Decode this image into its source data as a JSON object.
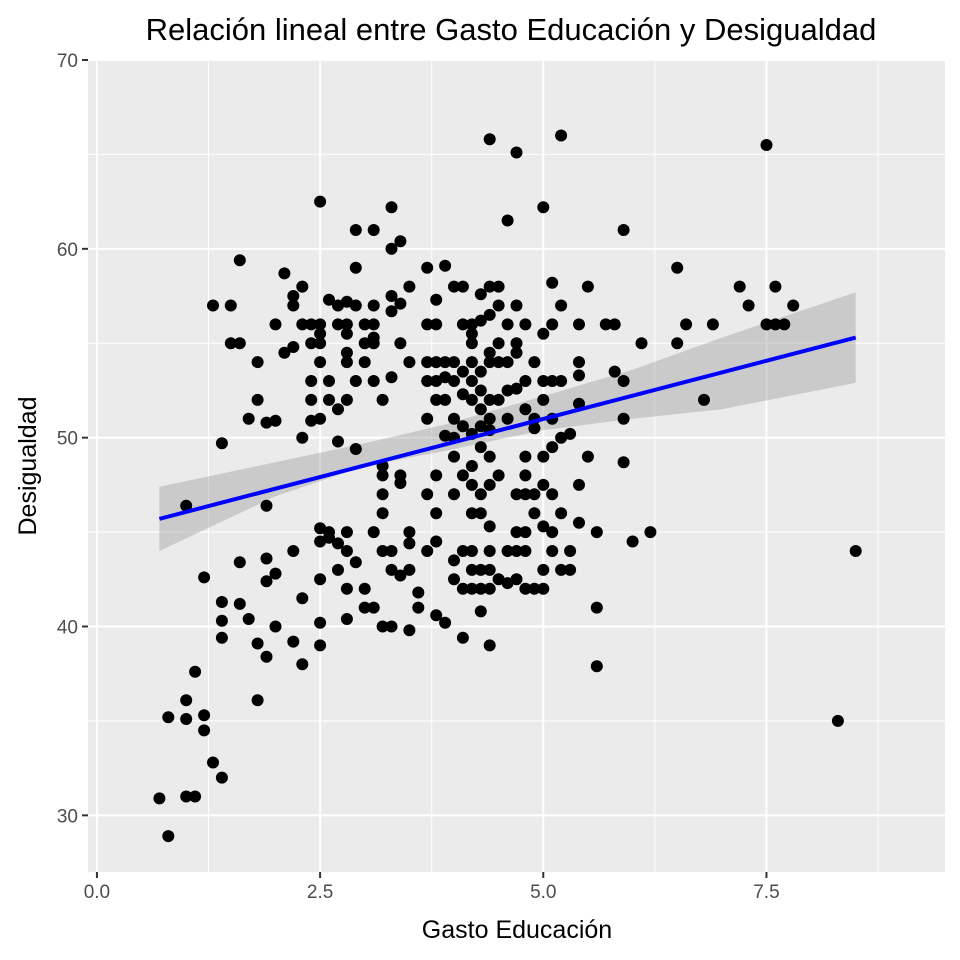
{
  "chart_data": {
    "type": "scatter",
    "title": "Relación lineal entre Gasto Educación y Desigualdad",
    "xlabel": "Gasto Educación",
    "ylabel": "Desigualdad",
    "xlim": [
      -0.1,
      9.5
    ],
    "ylim": [
      27,
      70
    ],
    "x_ticks": [
      0.0,
      2.5,
      5.0,
      7.5
    ],
    "x_tick_labels": [
      "0.0",
      "2.5",
      "5.0",
      "7.5"
    ],
    "y_ticks": [
      30,
      40,
      50,
      60,
      70
    ],
    "y_tick_labels": [
      "30",
      "40",
      "50",
      "60",
      "70"
    ],
    "grid": true,
    "colors": {
      "panel": "#ebebeb",
      "grid": "#ffffff",
      "points": "#000000",
      "fit_line": "#0000ff",
      "ci_band": "#999999"
    },
    "fit_line": {
      "method": "lm",
      "start": [
        0.7,
        45.7
      ],
      "end": [
        8.5,
        55.3
      ],
      "ci_band": [
        {
          "x": 0.7,
          "lower": 44.0,
          "upper": 47.4
        },
        {
          "x": 2.0,
          "lower": 46.9,
          "upper": 48.7
        },
        {
          "x": 3.0,
          "lower": 48.5,
          "upper": 49.7
        },
        {
          "x": 3.9,
          "lower": 49.3,
          "upper": 50.7
        },
        {
          "x": 5.0,
          "lower": 50.4,
          "upper": 52.2
        },
        {
          "x": 6.0,
          "lower": 51.0,
          "upper": 53.6
        },
        {
          "x": 7.0,
          "lower": 51.5,
          "upper": 55.3
        },
        {
          "x": 8.5,
          "lower": 52.9,
          "upper": 57.7
        }
      ]
    },
    "points": [
      [
        0.7,
        30.9
      ],
      [
        0.8,
        28.9
      ],
      [
        0.8,
        35.2
      ],
      [
        1.0,
        36.1
      ],
      [
        1.0,
        35.1
      ],
      [
        1.0,
        31.0
      ],
      [
        1.1,
        31.0
      ],
      [
        1.1,
        37.6
      ],
      [
        1.2,
        35.3
      ],
      [
        1.2,
        34.5
      ],
      [
        1.3,
        32.8
      ],
      [
        1.4,
        32.0
      ],
      [
        1.2,
        42.6
      ],
      [
        1.4,
        41.3
      ],
      [
        1.4,
        40.3
      ],
      [
        1.4,
        39.4
      ],
      [
        1.6,
        41.2
      ],
      [
        1.7,
        40.4
      ],
      [
        1.8,
        39.1
      ],
      [
        1.8,
        36.1
      ],
      [
        1.9,
        38.4
      ],
      [
        1.9,
        42.4
      ],
      [
        1.9,
        43.6
      ],
      [
        2.0,
        42.8
      ],
      [
        2.0,
        40.0
      ],
      [
        2.2,
        39.2
      ],
      [
        2.3,
        38.0
      ],
      [
        2.3,
        41.5
      ],
      [
        2.2,
        44.0
      ],
      [
        1.6,
        43.4
      ],
      [
        1.0,
        46.4
      ],
      [
        1.9,
        46.4
      ],
      [
        1.4,
        49.7
      ],
      [
        1.7,
        51.0
      ],
      [
        1.9,
        50.8
      ],
      [
        2.0,
        50.9
      ],
      [
        1.8,
        52.0
      ],
      [
        1.8,
        54.0
      ],
      [
        1.6,
        55.0
      ],
      [
        1.5,
        55.0
      ],
      [
        1.3,
        57.0
      ],
      [
        1.5,
        57.0
      ],
      [
        1.6,
        59.4
      ],
      [
        2.0,
        56.0
      ],
      [
        2.1,
        54.5
      ],
      [
        2.1,
        58.7
      ],
      [
        2.2,
        57.5
      ],
      [
        2.2,
        57.0
      ],
      [
        2.2,
        54.8
      ],
      [
        2.3,
        56.0
      ],
      [
        2.3,
        58.0
      ],
      [
        2.4,
        56.0
      ],
      [
        2.4,
        55.0
      ],
      [
        2.4,
        53.0
      ],
      [
        2.4,
        52.0
      ],
      [
        2.4,
        50.9
      ],
      [
        2.3,
        50.0
      ],
      [
        2.5,
        62.5
      ],
      [
        2.5,
        56.0
      ],
      [
        2.5,
        55.5
      ],
      [
        2.5,
        55.0
      ],
      [
        2.5,
        54.0
      ],
      [
        2.5,
        51.0
      ],
      [
        2.5,
        45.2
      ],
      [
        2.5,
        44.5
      ],
      [
        2.5,
        42.5
      ],
      [
        2.5,
        40.2
      ],
      [
        2.5,
        39.0
      ],
      [
        2.6,
        57.3
      ],
      [
        2.6,
        53.0
      ],
      [
        2.6,
        52.0
      ],
      [
        2.6,
        45.0
      ],
      [
        2.6,
        44.7
      ],
      [
        2.7,
        57.0
      ],
      [
        2.7,
        56.0
      ],
      [
        2.7,
        51.5
      ],
      [
        2.7,
        49.8
      ],
      [
        2.7,
        44.4
      ],
      [
        2.7,
        43.0
      ],
      [
        2.8,
        57.2
      ],
      [
        2.8,
        56.0
      ],
      [
        2.8,
        55.5
      ],
      [
        2.8,
        54.5
      ],
      [
        2.8,
        54.0
      ],
      [
        2.8,
        52.0
      ],
      [
        2.8,
        45.0
      ],
      [
        2.8,
        44.0
      ],
      [
        2.8,
        42.0
      ],
      [
        2.8,
        40.4
      ],
      [
        2.9,
        61.0
      ],
      [
        2.9,
        59.0
      ],
      [
        2.9,
        57.0
      ],
      [
        2.9,
        53.0
      ],
      [
        2.9,
        49.4
      ],
      [
        2.9,
        43.4
      ],
      [
        3.0,
        56.0
      ],
      [
        3.0,
        55.0
      ],
      [
        3.0,
        54.0
      ],
      [
        3.0,
        42.0
      ],
      [
        3.0,
        41.0
      ],
      [
        3.1,
        61.0
      ],
      [
        3.1,
        57.0
      ],
      [
        3.1,
        56.0
      ],
      [
        3.1,
        55.3
      ],
      [
        3.1,
        55.0
      ],
      [
        3.1,
        53.0
      ],
      [
        3.1,
        45.0
      ],
      [
        3.1,
        41.0
      ],
      [
        3.2,
        52.0
      ],
      [
        3.2,
        48.5
      ],
      [
        3.2,
        48.0
      ],
      [
        3.2,
        47.0
      ],
      [
        3.2,
        46.0
      ],
      [
        3.2,
        44.0
      ],
      [
        3.2,
        40.0
      ],
      [
        3.3,
        62.2
      ],
      [
        3.3,
        60.0
      ],
      [
        3.3,
        57.5
      ],
      [
        3.3,
        56.7
      ],
      [
        3.3,
        53.2
      ],
      [
        3.3,
        44.0
      ],
      [
        3.3,
        43.0
      ],
      [
        3.3,
        40.0
      ],
      [
        3.4,
        60.4
      ],
      [
        3.4,
        57.1
      ],
      [
        3.4,
        55.0
      ],
      [
        3.4,
        48.0
      ],
      [
        3.4,
        47.6
      ],
      [
        3.4,
        42.7
      ],
      [
        3.5,
        58.0
      ],
      [
        3.5,
        54.0
      ],
      [
        3.5,
        45.0
      ],
      [
        3.5,
        44.4
      ],
      [
        3.5,
        43.0
      ],
      [
        3.5,
        39.8
      ],
      [
        3.6,
        41.8
      ],
      [
        3.6,
        41.0
      ],
      [
        3.7,
        59.0
      ],
      [
        3.7,
        56.0
      ],
      [
        3.7,
        54.0
      ],
      [
        3.7,
        53.0
      ],
      [
        3.7,
        51.0
      ],
      [
        3.7,
        47.0
      ],
      [
        3.7,
        44.0
      ],
      [
        3.8,
        57.3
      ],
      [
        3.8,
        56.0
      ],
      [
        3.8,
        54.0
      ],
      [
        3.8,
        53.0
      ],
      [
        3.8,
        52.0
      ],
      [
        3.8,
        48.0
      ],
      [
        3.8,
        46.0
      ],
      [
        3.8,
        44.5
      ],
      [
        3.8,
        40.6
      ],
      [
        3.9,
        59.1
      ],
      [
        3.9,
        54.0
      ],
      [
        3.9,
        53.2
      ],
      [
        3.9,
        52.0
      ],
      [
        3.9,
        50.1
      ],
      [
        3.9,
        40.2
      ],
      [
        4.0,
        58.0
      ],
      [
        4.0,
        54.0
      ],
      [
        4.0,
        53.0
      ],
      [
        4.0,
        51.0
      ],
      [
        4.0,
        50.0
      ],
      [
        4.0,
        49.0
      ],
      [
        4.0,
        47.0
      ],
      [
        4.0,
        43.5
      ],
      [
        4.0,
        42.5
      ],
      [
        4.1,
        58.0
      ],
      [
        4.1,
        56.0
      ],
      [
        4.1,
        53.5
      ],
      [
        4.1,
        52.3
      ],
      [
        4.1,
        50.6
      ],
      [
        4.1,
        48.0
      ],
      [
        4.1,
        44.0
      ],
      [
        4.1,
        42.0
      ],
      [
        4.1,
        39.4
      ],
      [
        4.2,
        56.0
      ],
      [
        4.2,
        55.5
      ],
      [
        4.2,
        55.0
      ],
      [
        4.2,
        54.0
      ],
      [
        4.2,
        53.0
      ],
      [
        4.2,
        52.0
      ],
      [
        4.2,
        50.2
      ],
      [
        4.2,
        48.5
      ],
      [
        4.2,
        47.5
      ],
      [
        4.2,
        46.0
      ],
      [
        4.2,
        44.0
      ],
      [
        4.2,
        43.0
      ],
      [
        4.2,
        42.0
      ],
      [
        4.3,
        57.6
      ],
      [
        4.3,
        56.2
      ],
      [
        4.3,
        53.5
      ],
      [
        4.3,
        52.5
      ],
      [
        4.3,
        51.5
      ],
      [
        4.3,
        50.6
      ],
      [
        4.3,
        49.5
      ],
      [
        4.3,
        47.0
      ],
      [
        4.3,
        46.0
      ],
      [
        4.3,
        43.0
      ],
      [
        4.3,
        42.0
      ],
      [
        4.3,
        40.8
      ],
      [
        4.4,
        65.8
      ],
      [
        4.4,
        58.0
      ],
      [
        4.4,
        56.5
      ],
      [
        4.4,
        54.5
      ],
      [
        4.4,
        54.0
      ],
      [
        4.4,
        52.0
      ],
      [
        4.4,
        51.0
      ],
      [
        4.4,
        50.4
      ],
      [
        4.4,
        49.0
      ],
      [
        4.4,
        47.5
      ],
      [
        4.4,
        45.3
      ],
      [
        4.4,
        44.0
      ],
      [
        4.4,
        43.0
      ],
      [
        4.4,
        42.0
      ],
      [
        4.4,
        39.0
      ],
      [
        4.5,
        58.0
      ],
      [
        4.5,
        57.0
      ],
      [
        4.5,
        55.0
      ],
      [
        4.5,
        54.0
      ],
      [
        4.5,
        52.0
      ],
      [
        4.5,
        48.0
      ],
      [
        4.5,
        42.5
      ],
      [
        4.6,
        61.5
      ],
      [
        4.6,
        56.0
      ],
      [
        4.6,
        54.0
      ],
      [
        4.6,
        52.5
      ],
      [
        4.6,
        51.0
      ],
      [
        4.6,
        44.0
      ],
      [
        4.6,
        42.3
      ],
      [
        4.7,
        65.1
      ],
      [
        4.7,
        57.0
      ],
      [
        4.7,
        55.0
      ],
      [
        4.7,
        54.5
      ],
      [
        4.7,
        52.6
      ],
      [
        4.7,
        47.0
      ],
      [
        4.7,
        45.0
      ],
      [
        4.7,
        44.0
      ],
      [
        4.7,
        42.5
      ],
      [
        4.8,
        56.0
      ],
      [
        4.8,
        53.0
      ],
      [
        4.8,
        51.5
      ],
      [
        4.8,
        49.0
      ],
      [
        4.8,
        48.0
      ],
      [
        4.8,
        47.0
      ],
      [
        4.8,
        45.0
      ],
      [
        4.8,
        44.0
      ],
      [
        4.8,
        42.0
      ],
      [
        4.9,
        54.0
      ],
      [
        4.9,
        51.0
      ],
      [
        4.9,
        50.5
      ],
      [
        4.9,
        47.0
      ],
      [
        4.9,
        46.0
      ],
      [
        4.9,
        42.0
      ],
      [
        5.0,
        62.2
      ],
      [
        5.0,
        55.5
      ],
      [
        5.0,
        53.0
      ],
      [
        5.0,
        52.0
      ],
      [
        5.0,
        49.0
      ],
      [
        5.0,
        47.5
      ],
      [
        5.0,
        45.3
      ],
      [
        5.0,
        43.0
      ],
      [
        5.0,
        42.0
      ],
      [
        5.1,
        58.2
      ],
      [
        5.1,
        56.0
      ],
      [
        5.1,
        53.0
      ],
      [
        5.1,
        51.0
      ],
      [
        5.1,
        49.5
      ],
      [
        5.1,
        47.0
      ],
      [
        5.1,
        45.0
      ],
      [
        5.1,
        44.0
      ],
      [
        5.2,
        66.0
      ],
      [
        5.2,
        57.0
      ],
      [
        5.2,
        53.0
      ],
      [
        5.2,
        50.0
      ],
      [
        5.2,
        46.0
      ],
      [
        5.2,
        43.0
      ],
      [
        5.3,
        50.2
      ],
      [
        5.3,
        44.0
      ],
      [
        5.3,
        43.0
      ],
      [
        5.4,
        54.0
      ],
      [
        5.4,
        53.3
      ],
      [
        5.4,
        51.8
      ],
      [
        5.4,
        47.5
      ],
      [
        5.4,
        45.5
      ],
      [
        5.4,
        56.0
      ],
      [
        5.5,
        58.0
      ],
      [
        5.5,
        49.0
      ],
      [
        5.6,
        45.0
      ],
      [
        5.6,
        41.0
      ],
      [
        5.6,
        37.9
      ],
      [
        5.7,
        56.0
      ],
      [
        5.8,
        56.0
      ],
      [
        5.8,
        53.5
      ],
      [
        5.9,
        61.0
      ],
      [
        5.9,
        53.0
      ],
      [
        5.9,
        51.0
      ],
      [
        5.9,
        48.7
      ],
      [
        6.0,
        44.5
      ],
      [
        6.1,
        55.0
      ],
      [
        6.2,
        45.0
      ],
      [
        6.5,
        59.0
      ],
      [
        6.5,
        55.0
      ],
      [
        6.6,
        56.0
      ],
      [
        6.8,
        52.0
      ],
      [
        6.9,
        56.0
      ],
      [
        7.2,
        58.0
      ],
      [
        7.3,
        57.0
      ],
      [
        7.5,
        65.5
      ],
      [
        7.5,
        56.0
      ],
      [
        7.6,
        58.0
      ],
      [
        7.6,
        56.0
      ],
      [
        7.7,
        56.0
      ],
      [
        7.8,
        57.0
      ],
      [
        8.3,
        35.0
      ],
      [
        8.5,
        44.0
      ]
    ]
  }
}
